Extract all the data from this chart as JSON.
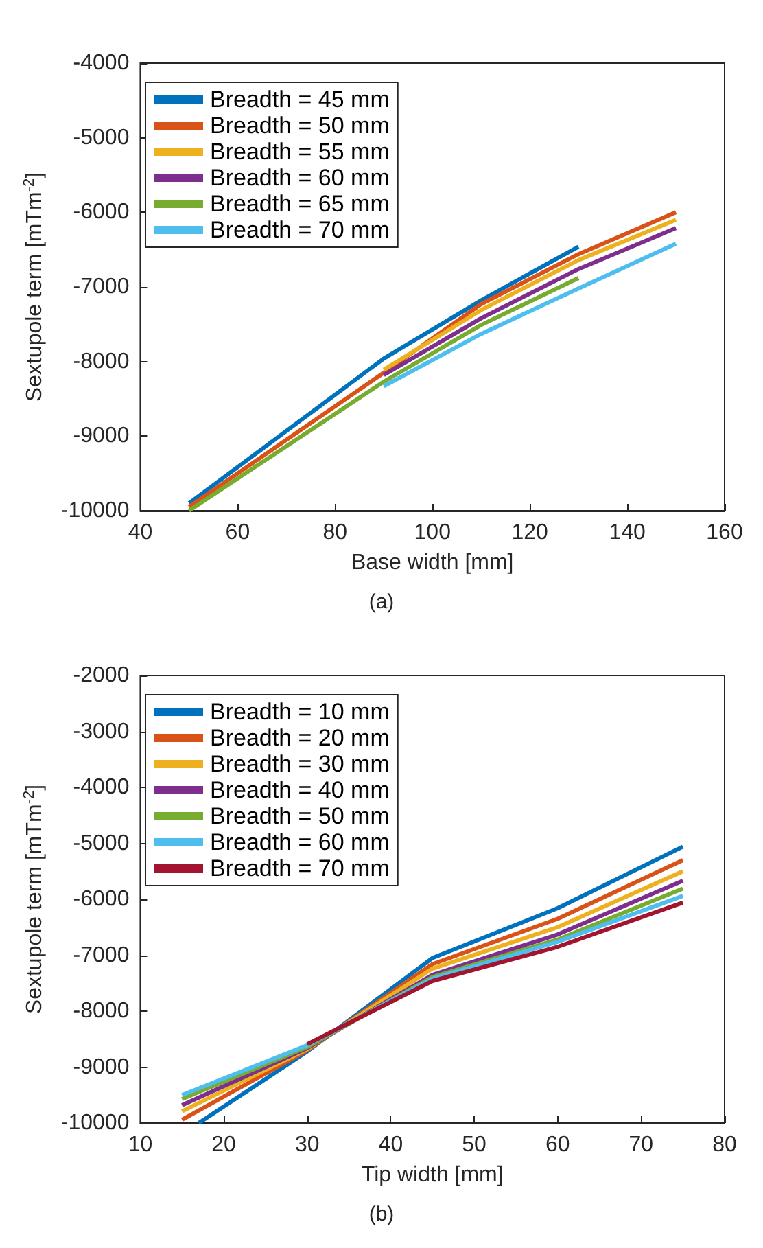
{
  "chart_data": [
    {
      "type": "line",
      "xlabel": "Base width [mm]",
      "ylabel": "Sextupole term [mTm$^{-2}$]",
      "annotations": [
        "(a)"
      ],
      "x": [
        50,
        90,
        110,
        130,
        150
      ],
      "xlim": [
        40,
        160
      ],
      "xticks": [
        40,
        60,
        80,
        100,
        120,
        140,
        160
      ],
      "ylim": [
        -10000,
        -4000
      ],
      "yticks": [
        -10000,
        -9000,
        -8000,
        -7000,
        -6000,
        -5000,
        -4000
      ],
      "grid": false,
      "legend": "top left",
      "line_style": "solid",
      "marker": "none",
      "series": [
        {
          "name": "Breadth = 45 mm",
          "color": "#0072bd",
          "values": [
            -9900,
            -7960,
            -7180,
            -6460,
            null
          ]
        },
        {
          "name": "Breadth = 50 mm",
          "color": "#d95319",
          "values": [
            -9950,
            -8150,
            -7230,
            -6560,
            -6000
          ]
        },
        {
          "name": "Breadth = 55 mm",
          "color": "#edb120",
          "values": [
            null,
            -8110,
            -7310,
            -6640,
            -6100
          ]
        },
        {
          "name": "Breadth = 60 mm",
          "color": "#7e2f8e",
          "values": [
            null,
            -8180,
            -7420,
            -6760,
            -6210
          ]
        },
        {
          "name": "Breadth = 65 mm",
          "color": "#77ac30",
          "values": [
            -10000,
            -8270,
            -7510,
            -6880,
            null
          ]
        },
        {
          "name": "Breadth = 70 mm",
          "color": "#4dbeee",
          "values": [
            null,
            -8330,
            -7630,
            -7020,
            -6420
          ]
        }
      ]
    },
    {
      "type": "line",
      "xlabel": "Tip width [mm]",
      "ylabel": "Sextupole term [mTm$^{-2}$]",
      "annotations": [
        "(b)"
      ],
      "x": [
        15,
        30,
        45,
        60,
        75
      ],
      "xlim": [
        10,
        80
      ],
      "xticks": [
        10,
        20,
        30,
        40,
        50,
        60,
        70,
        80
      ],
      "ylim": [
        -10000,
        -2000
      ],
      "yticks": [
        -10000,
        -9000,
        -8000,
        -7000,
        -6000,
        -5000,
        -4000,
        -3000,
        -2000
      ],
      "grid": false,
      "legend": "top left",
      "line_style": "solid",
      "marker": "none",
      "series": [
        {
          "name": "Breadth = 10 mm",
          "color": "#0072bd",
          "x": [
            17,
            30,
            45,
            60,
            75
          ],
          "values": [
            -10000,
            -8720,
            -7050,
            -6160,
            -5060
          ]
        },
        {
          "name": "Breadth = 20 mm",
          "color": "#d95319",
          "values": [
            -9940,
            -8700,
            -7160,
            -6350,
            -5300
          ]
        },
        {
          "name": "Breadth = 30 mm",
          "color": "#edb120",
          "values": [
            -9790,
            -8680,
            -7240,
            -6500,
            -5500
          ]
        },
        {
          "name": "Breadth = 40 mm",
          "color": "#7e2f8e",
          "values": [
            -9680,
            -8660,
            -7350,
            -6630,
            -5670
          ]
        },
        {
          "name": "Breadth = 50 mm",
          "color": "#77ac30",
          "values": [
            -9570,
            -8640,
            -7390,
            -6720,
            -5810
          ]
        },
        {
          "name": "Breadth = 60 mm",
          "color": "#4dbeee",
          "values": [
            -9500,
            -8610,
            -7420,
            -6760,
            -5940
          ]
        },
        {
          "name": "Breadth = 70 mm",
          "color": "#a2142f",
          "values": [
            null,
            -8590,
            -7460,
            -6850,
            -6060
          ]
        }
      ]
    }
  ]
}
